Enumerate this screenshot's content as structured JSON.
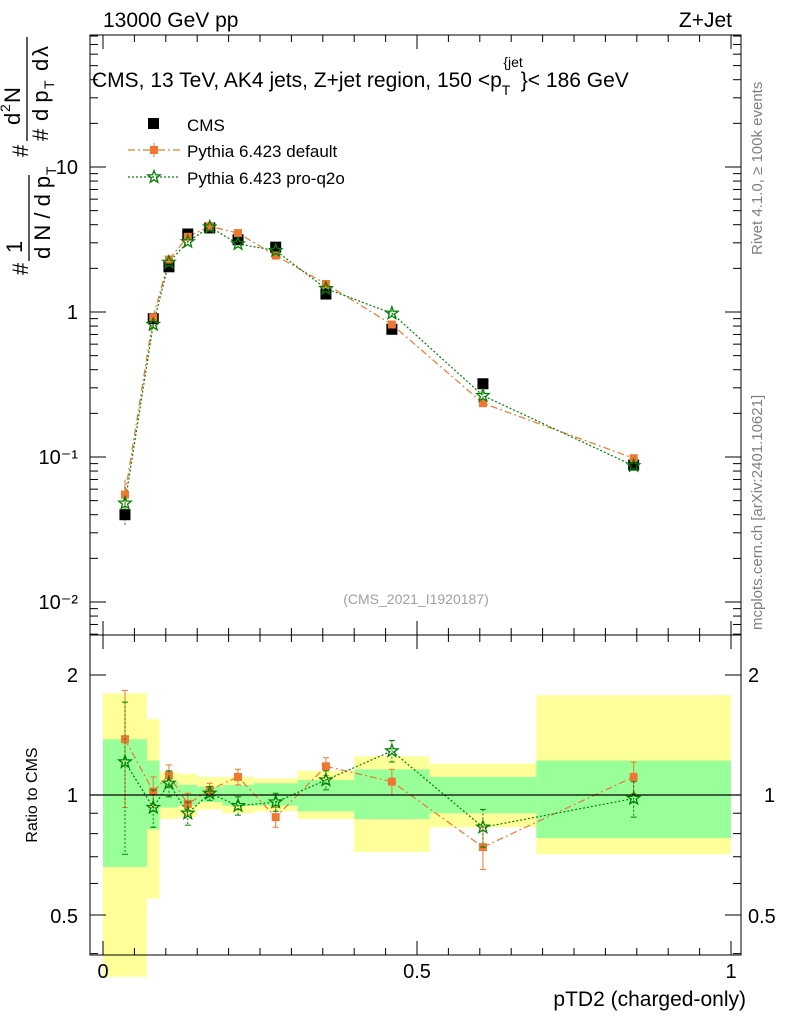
{
  "header": {
    "left": "13000 GeV pp",
    "right": "Z+Jet"
  },
  "side_labels": {
    "rivet": "Rivet 4.1.0, ≥ 100k events",
    "mcplots": "mcplots.cern.ch [arXiv:2401.10621]"
  },
  "chart_data": {
    "type": "scatter",
    "title": "CMS, 13 TeV, AK4 jets, Z+jet region, 150 <p_T^{jet}< 186 GeV",
    "analysis_tag": "(CMS_2021_I1920187)",
    "xlabel": "pTD2 (charged-only)",
    "ylabel": "1/dN/dp_T  d²N/dp_T dλ",
    "ratio_ylabel": "Ratio to CMS",
    "xlim": [
      0,
      1
    ],
    "ylim": [
      0.005,
      100
    ],
    "ratio_ylim": [
      0.35,
      2.35
    ],
    "yscale": "log",
    "x_ticks": [
      "0",
      "0.5",
      "1"
    ],
    "y_ticks": [
      "10⁻²",
      "10⁻¹",
      "1",
      "10"
    ],
    "ratio_ticks": [
      "0.5",
      "1",
      "2"
    ],
    "legend_position": "upper-left",
    "bins": [
      {
        "lo": 0.0,
        "hi": 0.07
      },
      {
        "lo": 0.07,
        "hi": 0.09
      },
      {
        "lo": 0.09,
        "hi": 0.12
      },
      {
        "lo": 0.12,
        "hi": 0.15
      },
      {
        "lo": 0.15,
        "hi": 0.19
      },
      {
        "lo": 0.19,
        "hi": 0.24
      },
      {
        "lo": 0.24,
        "hi": 0.31
      },
      {
        "lo": 0.31,
        "hi": 0.4
      },
      {
        "lo": 0.4,
        "hi": 0.52
      },
      {
        "lo": 0.52,
        "hi": 0.69
      },
      {
        "lo": 0.69,
        "hi": 1.0
      }
    ],
    "x": [
      0.035,
      0.08,
      0.105,
      0.135,
      0.17,
      0.215,
      0.275,
      0.355,
      0.46,
      0.605,
      0.845
    ],
    "series": [
      {
        "name": "CMS",
        "color": "#000000",
        "marker": "square",
        "values": [
          0.04,
          0.9,
          2.05,
          3.45,
          3.8,
          3.15,
          2.8,
          1.33,
          0.76,
          0.32,
          0.088
        ]
      },
      {
        "name": "Pythia 6.423 default",
        "color": "#ee7733",
        "marker": "square",
        "line": "dashdot",
        "values": [
          0.055,
          0.92,
          2.3,
          3.3,
          3.9,
          3.5,
          2.45,
          1.56,
          0.82,
          0.235,
          0.098
        ]
      },
      {
        "name": "Pythia 6.423 pro-q2o",
        "color": "#008000",
        "marker": "star",
        "line": "dotted",
        "values": [
          0.048,
          0.82,
          2.2,
          3.05,
          3.85,
          2.95,
          2.65,
          1.45,
          0.98,
          0.265,
          0.087
        ]
      }
    ],
    "ratio": {
      "Pythia 6.423 default": [
        1.38,
        1.02,
        1.12,
        0.95,
        1.03,
        1.11,
        0.88,
        1.18,
        1.08,
        0.74,
        1.11
      ],
      "Pythia 6.423 pro-q2o": [
        1.21,
        0.93,
        1.07,
        0.9,
        1.01,
        0.94,
        0.96,
        1.09,
        1.29,
        0.83,
        0.98
      ]
    },
    "ratio_errors": {
      "Pythia 6.423 default": [
        0.45,
        0.09,
        0.07,
        0.06,
        0.04,
        0.05,
        0.05,
        0.06,
        0.08,
        0.09,
        0.1
      ],
      "Pythia 6.423 pro-q2o": [
        0.5,
        0.1,
        0.08,
        0.06,
        0.04,
        0.05,
        0.05,
        0.06,
        0.08,
        0.09,
        0.1
      ]
    },
    "uncertainty_bands": {
      "green": [
        [
          0.66,
          1.38
        ],
        [
          0.82,
          1.22
        ],
        [
          0.93,
          1.08
        ],
        [
          0.94,
          1.06
        ],
        [
          0.96,
          1.05
        ],
        [
          0.94,
          1.06
        ],
        [
          0.94,
          1.07
        ],
        [
          0.91,
          1.09
        ],
        [
          0.87,
          1.16
        ],
        [
          0.9,
          1.11
        ],
        [
          0.78,
          1.22
        ]
      ],
      "yellow": [
        [
          0.35,
          1.8
        ],
        [
          0.55,
          1.55
        ],
        [
          0.87,
          1.14
        ],
        [
          0.88,
          1.13
        ],
        [
          0.92,
          1.11
        ],
        [
          0.9,
          1.11
        ],
        [
          0.91,
          1.1
        ],
        [
          0.87,
          1.15
        ],
        [
          0.72,
          1.25
        ],
        [
          0.83,
          1.2
        ],
        [
          0.71,
          1.78
        ]
      ]
    }
  }
}
